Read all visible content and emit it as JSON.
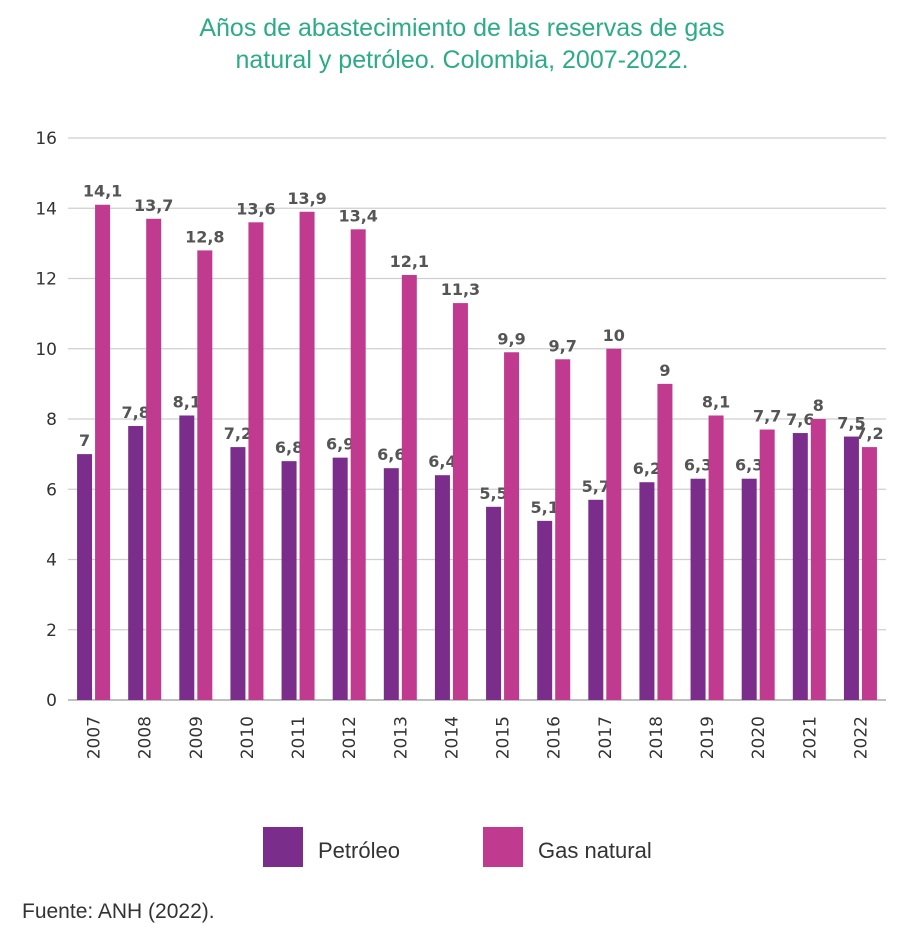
{
  "chart_data": {
    "type": "bar",
    "title_line1": "Años de abastecimiento de las reservas de gas",
    "title_line2": "natural y petróleo. Colombia, 2007-2022.",
    "categories": [
      "2007",
      "2008",
      "2009",
      "2010",
      "2011",
      "2012",
      "2013",
      "2014",
      "2015",
      "2016",
      "2017",
      "2018",
      "2019",
      "2020",
      "2021",
      "2022"
    ],
    "series": [
      {
        "name": "Petróleo",
        "color": "#7b2d8c",
        "values": [
          7,
          7.8,
          8.1,
          7.2,
          6.8,
          6.9,
          6.6,
          6.4,
          5.5,
          5.1,
          5.7,
          6.2,
          6.3,
          6.3,
          7.6,
          7.5
        ],
        "labels": [
          "7",
          "7,8",
          "8,1",
          "7,2",
          "6,8",
          "6,9",
          "6,6",
          "6,4",
          "5,5",
          "5,1",
          "5,7",
          "6,2",
          "6,3",
          "6,3",
          "7,6",
          "7,5"
        ]
      },
      {
        "name": "Gas natural",
        "color": "#c03b90",
        "values": [
          14.1,
          13.7,
          12.8,
          13.6,
          13.9,
          13.4,
          12.1,
          11.3,
          9.9,
          9.7,
          10,
          9,
          8.1,
          7.7,
          8,
          7.2
        ],
        "labels": [
          "14,1",
          "13,7",
          "12,8",
          "13,6",
          "13,9",
          "13,4",
          "12,1",
          "11,3",
          "9,9",
          "9,7",
          "10",
          "9",
          "8,1",
          "7,7",
          "8",
          "7,2"
        ]
      }
    ],
    "yticks": [
      0,
      2,
      4,
      6,
      8,
      10,
      12,
      14,
      16
    ],
    "ylim": [
      0,
      16
    ],
    "grid": true,
    "legend_position": "bottom"
  },
  "source": "Fuente: ANH (2022)."
}
